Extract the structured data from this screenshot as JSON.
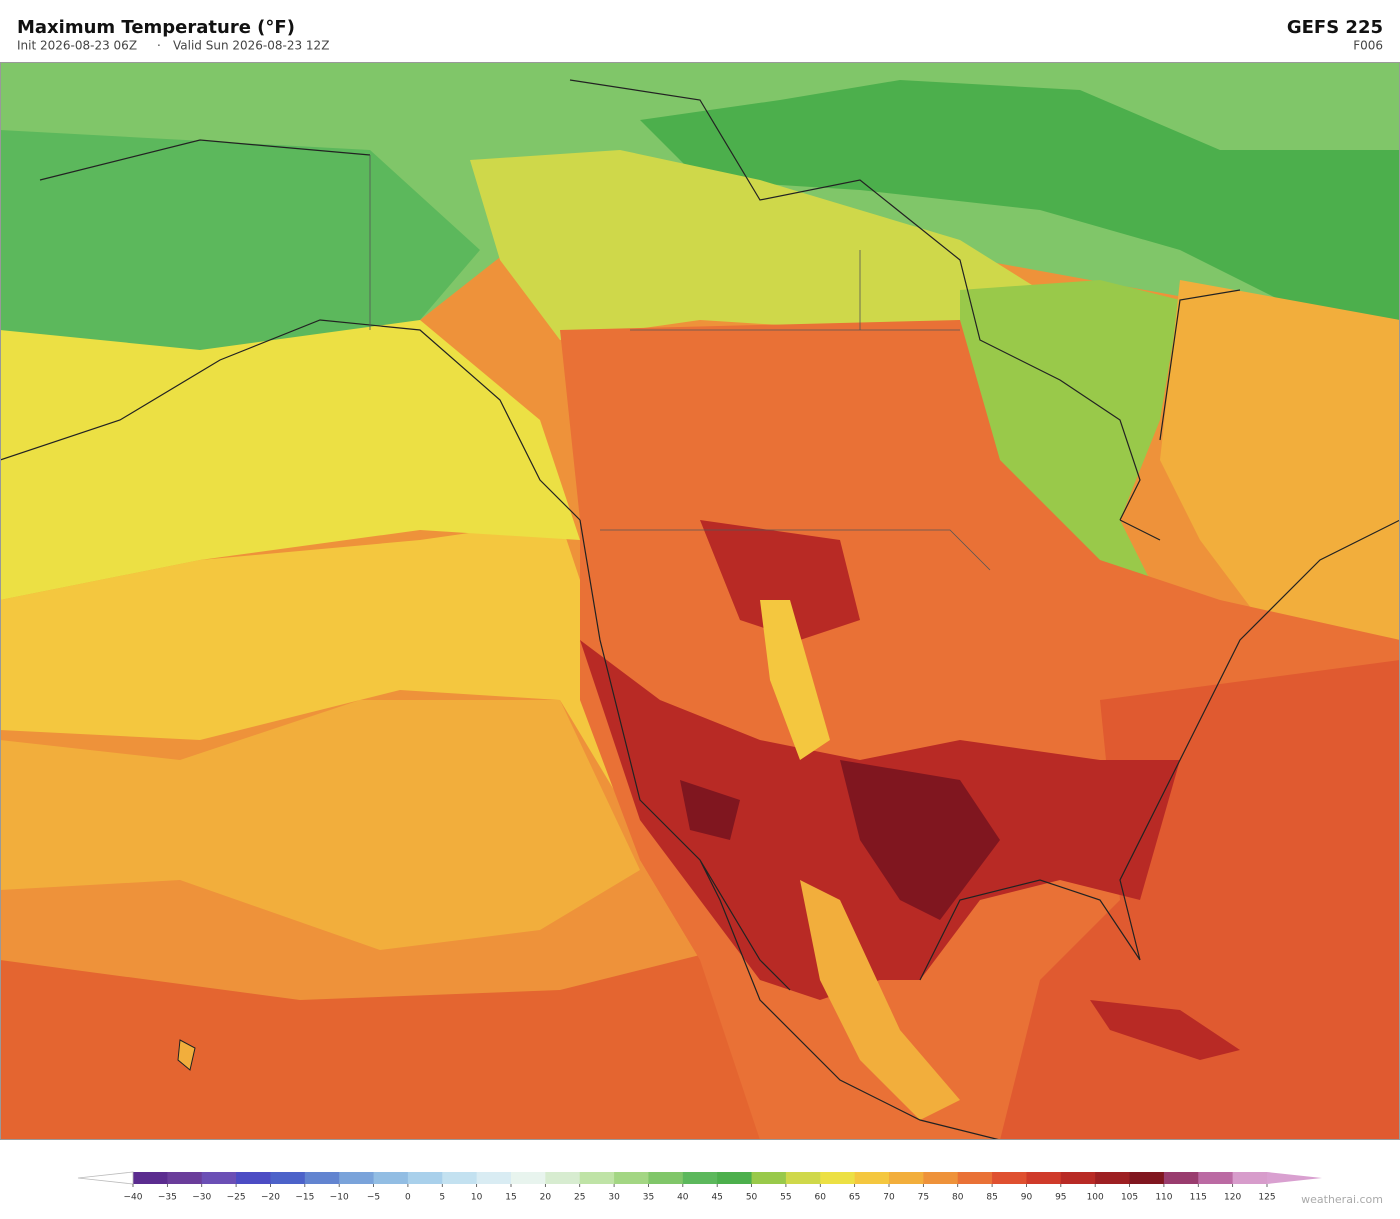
{
  "header": {
    "title": "Maximum Temperature  (°F)",
    "init": "Init 2026-08-23 06Z",
    "separator": "·",
    "valid": "Valid Sun 2026-08-23 12Z",
    "model": "GEFS  225",
    "forecast_hour": "F006"
  },
  "colorbar": {
    "ticks": [
      {
        "value": -40,
        "label": "−40"
      },
      {
        "value": -35,
        "label": "−35"
      },
      {
        "value": -30,
        "label": "−30"
      },
      {
        "value": -25,
        "label": "−25"
      },
      {
        "value": -20,
        "label": "−20"
      },
      {
        "value": -15,
        "label": "−15"
      },
      {
        "value": -10,
        "label": "−10"
      },
      {
        "value": -5,
        "label": "−5"
      },
      0,
      5,
      10,
      15,
      20,
      25,
      30,
      35,
      40,
      45,
      50,
      55,
      60,
      65,
      70,
      75,
      80,
      85,
      90,
      95,
      100,
      105,
      110,
      115,
      120,
      125
    ],
    "colors": [
      "#5b2c8f",
      "#6a3d9a",
      "#6b4fb5",
      "#4c4cc4",
      "#4c62c9",
      "#6284d0",
      "#7aa3da",
      "#92bde3",
      "#a9d0eb",
      "#c3e1f0",
      "#d9ecf3",
      "#e8f4ee",
      "#d7ecd0",
      "#bfe3a6",
      "#a3d683",
      "#80c669",
      "#5cb85c",
      "#4caf4c",
      "#99c94a",
      "#cfd84a",
      "#ece044",
      "#f4c73f",
      "#f2ae3c",
      "#ee923a",
      "#e97136",
      "#df5030",
      "#cf3a2a",
      "#b82a25",
      "#9d1f22",
      "#80161f",
      "#993c6e",
      "#bb6aa3",
      "#d79ccb"
    ],
    "extend_low_color": "#ffffff",
    "extend_high_color": "#d9a0d0"
  },
  "watermark": "weatherai.com"
}
